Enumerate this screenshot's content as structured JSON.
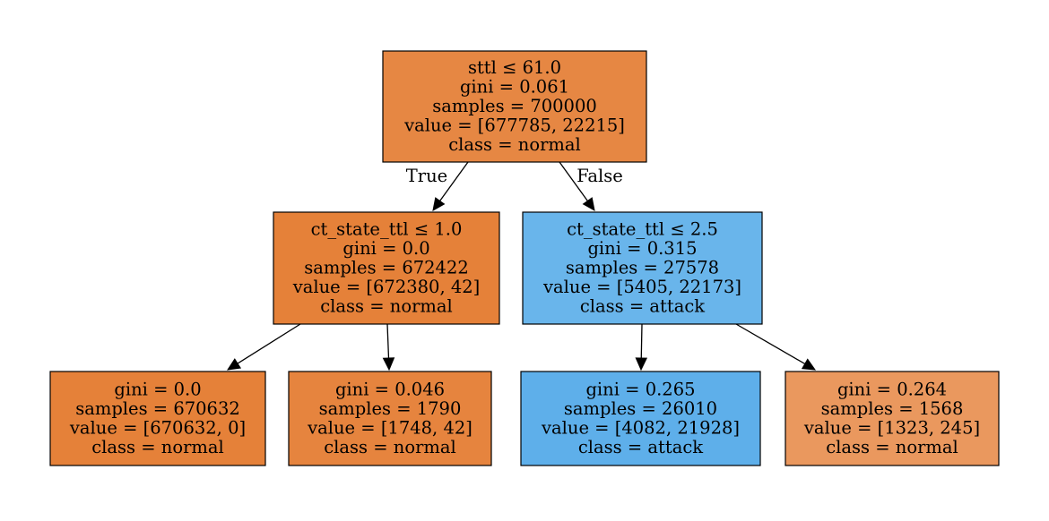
{
  "tree": {
    "nodes": [
      {
        "id": "n0",
        "lines": [
          "sttl ≤ 61.0",
          "gini = 0.061",
          "samples = 700000",
          "value = [677785, 22215]",
          "class = normal"
        ],
        "fill": "#e68743"
      },
      {
        "id": "n1",
        "lines": [
          "ct_state_ttl ≤ 1.0",
          "gini = 0.0",
          "samples = 672422",
          "value = [672380, 42]",
          "class = normal"
        ],
        "fill": "#e58139"
      },
      {
        "id": "n2",
        "lines": [
          "ct_state_ttl ≤ 2.5",
          "gini = 0.315",
          "samples = 27578",
          "value = [5405, 22173]",
          "class = attack"
        ],
        "fill": "#69b5eb"
      },
      {
        "id": "n3",
        "lines": [
          "gini = 0.0",
          "samples = 670632",
          "value = [670632, 0]",
          "class = normal"
        ],
        "fill": "#e58139"
      },
      {
        "id": "n4",
        "lines": [
          "gini = 0.046",
          "samples = 1790",
          "value = [1748, 42]",
          "class = normal"
        ],
        "fill": "#e6843e"
      },
      {
        "id": "n5",
        "lines": [
          "gini = 0.265",
          "samples = 26010",
          "value = [4082, 21928]",
          "class = attack"
        ],
        "fill": "#5eafea"
      },
      {
        "id": "n6",
        "lines": [
          "gini = 0.264",
          "samples = 1568",
          "value = [1323, 245]",
          "class = normal"
        ],
        "fill": "#ea985e"
      }
    ],
    "edges": [
      {
        "from": "n0",
        "to": "n1",
        "label": "True"
      },
      {
        "from": "n0",
        "to": "n2",
        "label": "False"
      },
      {
        "from": "n1",
        "to": "n3",
        "label": ""
      },
      {
        "from": "n1",
        "to": "n4",
        "label": ""
      },
      {
        "from": "n2",
        "to": "n5",
        "label": ""
      },
      {
        "from": "n2",
        "to": "n6",
        "label": ""
      }
    ]
  }
}
